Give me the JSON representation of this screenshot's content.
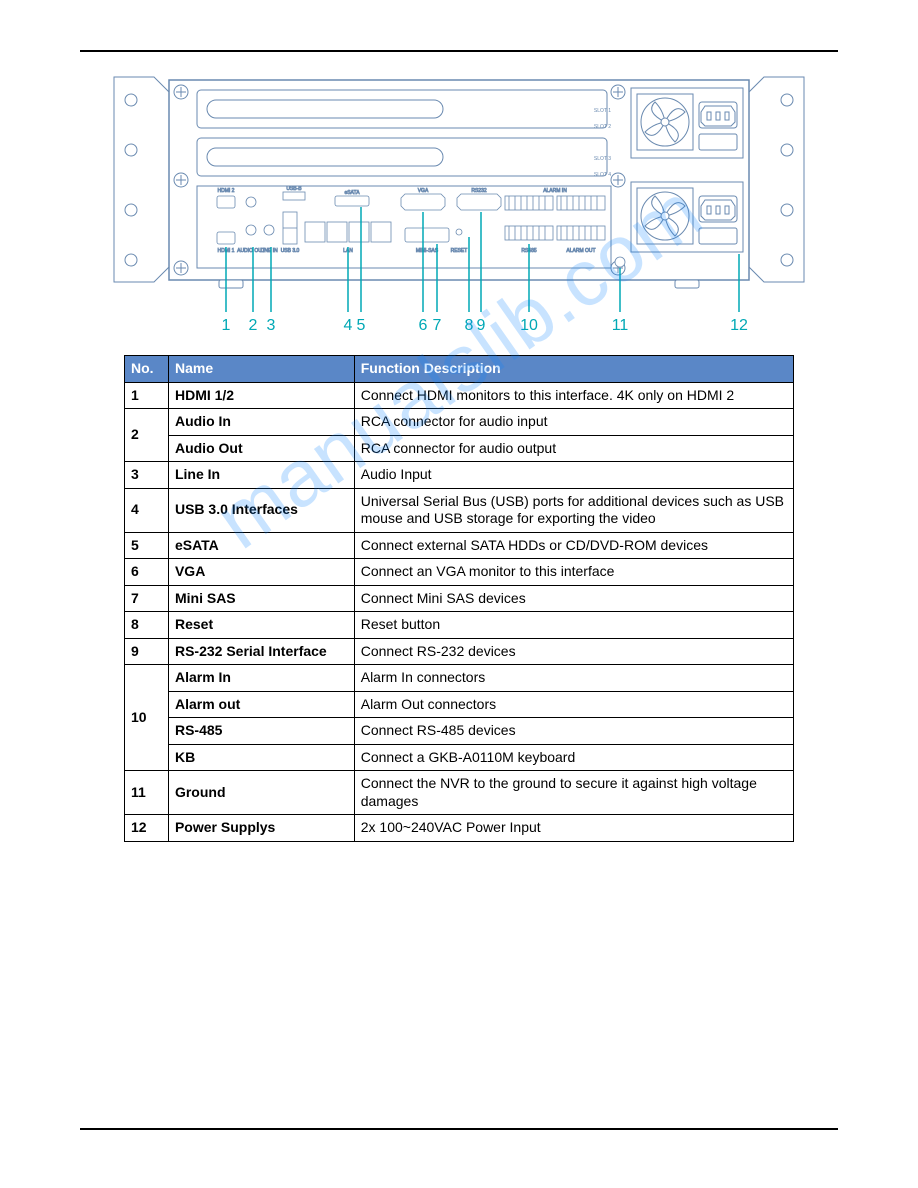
{
  "watermark_text": "manualslib.com",
  "watermark_color": "#0a84ff",
  "diagram": {
    "labels": [
      "1",
      "2",
      "3",
      "4",
      "5",
      "6",
      "7",
      "8",
      "9",
      "10",
      "11",
      "12"
    ],
    "label_color": "#00a8b5",
    "line_color": "#00a8b5",
    "outline_color": "#6a8ab0",
    "tiny_text_color": "#6a8ab0",
    "tiny_labels": {
      "hdmi2": "HDMI 2",
      "hdmi1": "HDMI 1",
      "audio_out": "AUDIO OUT",
      "line_in": "LINE IN",
      "usb30": "USB 3.0",
      "usb_b": "USB-B",
      "esata": "eSATA",
      "lan": "LAN",
      "vga": "VGA",
      "mini_sas": "MINI-SAS",
      "rs232": "RS232",
      "alarm_in": "ALARM IN",
      "alarm_out": "ALARM OUT",
      "rs485": "RS485",
      "reset": "RESET",
      "slot1": "SLOT 1",
      "slot2": "SLOT 2",
      "slot3": "SLOT 3",
      "slot4": "SLOT 4"
    }
  },
  "table": {
    "header_bg": "#5a87c7",
    "header_fg": "#ffffff",
    "border_color": "#000000",
    "columns": [
      "No.",
      "Name",
      "Function Description"
    ],
    "rows": [
      {
        "no": "1",
        "span": 1,
        "items": [
          {
            "name": "HDMI 1/2",
            "desc": "Connect HDMI monitors to this interface. 4K only on HDMI 2"
          }
        ]
      },
      {
        "no": "2",
        "span": 2,
        "items": [
          {
            "name": "Audio In",
            "desc": "RCA connector for audio input"
          },
          {
            "name": "Audio Out",
            "desc": "RCA connector for audio output"
          }
        ]
      },
      {
        "no": "3",
        "span": 1,
        "items": [
          {
            "name": "Line In",
            "desc": "Audio Input"
          }
        ]
      },
      {
        "no": "4",
        "span": 1,
        "items": [
          {
            "name": "USB 3.0 Interfaces",
            "desc": "Universal Serial Bus (USB) ports for additional devices such as USB mouse and USB storage for exporting the video"
          }
        ]
      },
      {
        "no": "5",
        "span": 1,
        "items": [
          {
            "name": "eSATA",
            "desc": "Connect external SATA HDDs or CD/DVD-ROM devices"
          }
        ]
      },
      {
        "no": "6",
        "span": 1,
        "items": [
          {
            "name": "VGA",
            "desc": "Connect an VGA monitor to this interface"
          }
        ]
      },
      {
        "no": "7",
        "span": 1,
        "items": [
          {
            "name": "Mini SAS",
            "desc": "Connect Mini SAS devices"
          }
        ]
      },
      {
        "no": "8",
        "span": 1,
        "items": [
          {
            "name": "Reset",
            "desc": "Reset button"
          }
        ]
      },
      {
        "no": "9",
        "span": 1,
        "items": [
          {
            "name": "RS-232 Serial Interface",
            "desc": "Connect RS-232 devices"
          }
        ]
      },
      {
        "no": "10",
        "span": 4,
        "items": [
          {
            "name": "Alarm In",
            "desc": "Alarm In connectors"
          },
          {
            "name": "Alarm out",
            "desc": "Alarm Out connectors"
          },
          {
            "name": "RS-485",
            "desc": "Connect RS-485 devices"
          },
          {
            "name": "KB",
            "desc": "Connect a GKB-A0110M keyboard"
          }
        ]
      },
      {
        "no": "11",
        "span": 1,
        "items": [
          {
            "name": "Ground",
            "desc": "Connect the NVR to the ground to secure it against high voltage damages"
          }
        ]
      },
      {
        "no": "12",
        "span": 1,
        "items": [
          {
            "name": "Power Supplys",
            "desc": "2x 100~240VAC Power Input"
          }
        ]
      }
    ]
  }
}
